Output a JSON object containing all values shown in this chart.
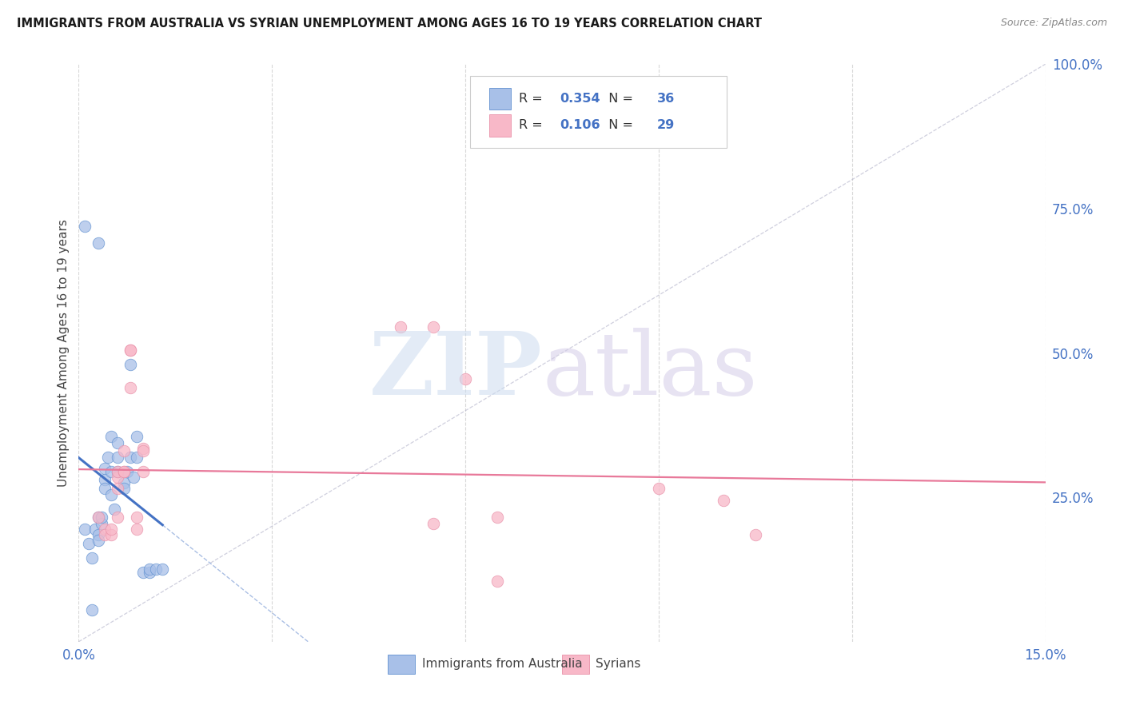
{
  "title": "IMMIGRANTS FROM AUSTRALIA VS SYRIAN UNEMPLOYMENT AMONG AGES 16 TO 19 YEARS CORRELATION CHART",
  "source": "Source: ZipAtlas.com",
  "ylabel": "Unemployment Among Ages 16 to 19 years",
  "xlim": [
    0.0,
    0.15
  ],
  "ylim": [
    0.0,
    1.0
  ],
  "xtick_positions": [
    0.0,
    0.03,
    0.06,
    0.09,
    0.12,
    0.15
  ],
  "xtick_labels": [
    "0.0%",
    "",
    "",
    "",
    "",
    "15.0%"
  ],
  "ytick_right_positions": [
    0.0,
    0.25,
    0.5,
    0.75,
    1.0
  ],
  "ytick_right_labels": [
    "",
    "25.0%",
    "50.0%",
    "75.0%",
    "100.0%"
  ],
  "legend_label_blue": "Immigrants from Australia",
  "legend_label_pink": "Syrians",
  "blue_R": "0.354",
  "blue_N": "36",
  "pink_R": "0.106",
  "pink_N": "29",
  "blue_scatter": [
    [
      0.001,
      0.195
    ],
    [
      0.0015,
      0.17
    ],
    [
      0.002,
      0.055
    ],
    [
      0.002,
      0.145
    ],
    [
      0.0025,
      0.195
    ],
    [
      0.003,
      0.215
    ],
    [
      0.003,
      0.185
    ],
    [
      0.003,
      0.175
    ],
    [
      0.0035,
      0.205
    ],
    [
      0.0035,
      0.215
    ],
    [
      0.004,
      0.28
    ],
    [
      0.004,
      0.3
    ],
    [
      0.004,
      0.265
    ],
    [
      0.0045,
      0.32
    ],
    [
      0.005,
      0.295
    ],
    [
      0.005,
      0.255
    ],
    [
      0.005,
      0.355
    ],
    [
      0.0055,
      0.23
    ],
    [
      0.006,
      0.295
    ],
    [
      0.006,
      0.345
    ],
    [
      0.006,
      0.32
    ],
    [
      0.007,
      0.275
    ],
    [
      0.007,
      0.265
    ],
    [
      0.0075,
      0.295
    ],
    [
      0.008,
      0.48
    ],
    [
      0.008,
      0.32
    ],
    [
      0.0085,
      0.285
    ],
    [
      0.009,
      0.355
    ],
    [
      0.009,
      0.32
    ],
    [
      0.01,
      0.12
    ],
    [
      0.011,
      0.12
    ],
    [
      0.011,
      0.125
    ],
    [
      0.012,
      0.125
    ],
    [
      0.013,
      0.125
    ],
    [
      0.003,
      0.69
    ],
    [
      0.001,
      0.72
    ]
  ],
  "pink_scatter": [
    [
      0.003,
      0.215
    ],
    [
      0.004,
      0.195
    ],
    [
      0.004,
      0.185
    ],
    [
      0.005,
      0.185
    ],
    [
      0.005,
      0.195
    ],
    [
      0.006,
      0.215
    ],
    [
      0.006,
      0.285
    ],
    [
      0.006,
      0.265
    ],
    [
      0.006,
      0.295
    ],
    [
      0.007,
      0.295
    ],
    [
      0.007,
      0.295
    ],
    [
      0.007,
      0.33
    ],
    [
      0.008,
      0.505
    ],
    [
      0.008,
      0.505
    ],
    [
      0.008,
      0.44
    ],
    [
      0.009,
      0.195
    ],
    [
      0.009,
      0.215
    ],
    [
      0.01,
      0.335
    ],
    [
      0.01,
      0.295
    ],
    [
      0.01,
      0.33
    ],
    [
      0.05,
      0.545
    ],
    [
      0.055,
      0.545
    ],
    [
      0.06,
      0.455
    ],
    [
      0.055,
      0.205
    ],
    [
      0.065,
      0.215
    ],
    [
      0.065,
      0.105
    ],
    [
      0.09,
      0.265
    ],
    [
      0.1,
      0.245
    ],
    [
      0.105,
      0.185
    ]
  ],
  "blue_line_color": "#4472c4",
  "pink_line_color": "#e8799a",
  "diag_line_color": "#b0b0c8",
  "grid_color": "#d8d8d8",
  "background_color": "#ffffff",
  "blue_scatter_color": "#a8c0e8",
  "blue_scatter_edge": "#6090d0",
  "pink_scatter_color": "#f8b8c8",
  "pink_scatter_edge": "#e890a8"
}
